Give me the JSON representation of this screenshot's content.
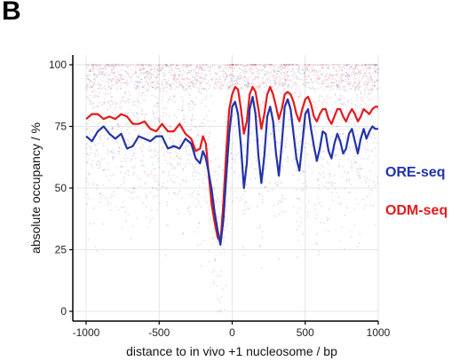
{
  "panel_label": "B",
  "colors": {
    "ore": "#2233aa",
    "odm": "#e31a1c",
    "grid": "#e4e4e4",
    "axis": "#000000"
  },
  "chart_data": {
    "type": "line",
    "title": "",
    "xlabel": "distance to in vivo +1 nucleosome / bp",
    "ylabel": "absolute occupancy / %",
    "xlim": [
      -1000,
      1000
    ],
    "ylim": [
      0,
      100
    ],
    "x_ticks": [
      -1000,
      -500,
      0,
      500,
      1000
    ],
    "x_tick_labels": [
      "-1000",
      "-500",
      "0",
      "500",
      "1000"
    ],
    "y_ticks": [
      0,
      25,
      50,
      75,
      100
    ],
    "y_tick_labels": [
      "0",
      "25",
      "50",
      "75",
      "100"
    ],
    "grid": true,
    "legend_placement": "right",
    "series": [
      {
        "name": "ORE-seq",
        "color": "#2233aa",
        "x": [
          -1000,
          -960,
          -920,
          -880,
          -840,
          -800,
          -760,
          -720,
          -680,
          -640,
          -600,
          -560,
          -520,
          -480,
          -440,
          -400,
          -360,
          -320,
          -280,
          -250,
          -220,
          -200,
          -180,
          -160,
          -140,
          -120,
          -100,
          -80,
          -60,
          -40,
          -20,
          0,
          20,
          40,
          60,
          80,
          100,
          120,
          140,
          160,
          180,
          200,
          220,
          240,
          260,
          280,
          300,
          320,
          340,
          360,
          380,
          400,
          420,
          440,
          460,
          480,
          500,
          520,
          540,
          560,
          580,
          600,
          620,
          640,
          660,
          680,
          700,
          720,
          740,
          760,
          780,
          800,
          820,
          840,
          860,
          880,
          900,
          920,
          940,
          960,
          980,
          1000
        ],
        "y": [
          71,
          69,
          73,
          75,
          72,
          70,
          72,
          66,
          67,
          71,
          70,
          69,
          71,
          71,
          66,
          67,
          66,
          70,
          68,
          62,
          60,
          65,
          62,
          56,
          49,
          40,
          33,
          27,
          37,
          55,
          72,
          83,
          85,
          80,
          67,
          50,
          60,
          82,
          87,
          80,
          63,
          52,
          63,
          79,
          83,
          77,
          64,
          55,
          68,
          83,
          86,
          82,
          72,
          62,
          57,
          68,
          80,
          82,
          74,
          67,
          61,
          66,
          73,
          72,
          65,
          62,
          68,
          72,
          69,
          64,
          66,
          72,
          74,
          69,
          64,
          70,
          74,
          70,
          73,
          75,
          74,
          74
        ]
      },
      {
        "name": "ODM-seq",
        "color": "#e31a1c",
        "x": [
          -1000,
          -960,
          -920,
          -880,
          -840,
          -800,
          -760,
          -720,
          -680,
          -640,
          -600,
          -560,
          -520,
          -480,
          -440,
          -400,
          -360,
          -320,
          -280,
          -250,
          -220,
          -200,
          -180,
          -160,
          -140,
          -120,
          -100,
          -80,
          -60,
          -40,
          -20,
          0,
          20,
          40,
          60,
          80,
          100,
          120,
          140,
          160,
          180,
          200,
          220,
          240,
          260,
          280,
          300,
          320,
          340,
          360,
          380,
          400,
          420,
          440,
          460,
          480,
          500,
          520,
          540,
          560,
          580,
          600,
          620,
          640,
          660,
          680,
          700,
          720,
          740,
          760,
          780,
          800,
          820,
          840,
          860,
          880,
          900,
          920,
          940,
          960,
          980,
          1000
        ],
        "y": [
          78,
          80,
          80,
          78,
          79,
          78,
          80,
          79,
          76,
          76,
          77,
          74,
          73,
          76,
          73,
          73,
          76,
          72,
          70,
          65,
          66,
          71,
          68,
          55,
          43,
          36,
          30,
          28,
          44,
          65,
          82,
          88,
          91,
          90,
          82,
          72,
          77,
          88,
          91,
          89,
          82,
          74,
          80,
          88,
          91,
          88,
          83,
          78,
          82,
          88,
          89,
          88,
          85,
          80,
          77,
          82,
          86,
          87,
          84,
          79,
          77,
          80,
          82,
          82,
          78,
          76,
          79,
          82,
          82,
          79,
          77,
          80,
          82,
          80,
          77,
          79,
          82,
          81,
          80,
          82,
          83,
          83
        ]
      }
    ]
  }
}
